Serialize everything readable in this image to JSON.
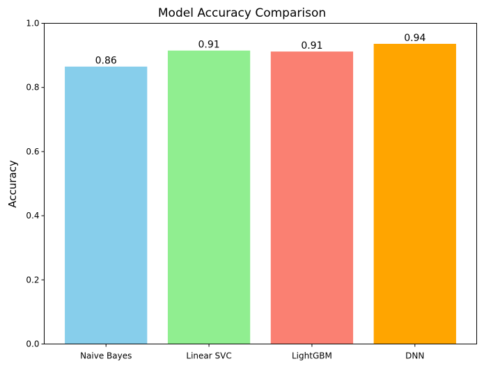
{
  "chart_data": {
    "type": "bar",
    "title": "Model Accuracy Comparison",
    "xlabel": "",
    "ylabel": "Accuracy",
    "categories": [
      "Naive Bayes",
      "Linear SVC",
      "LightGBM",
      "DNN"
    ],
    "values": [
      0.865,
      0.915,
      0.912,
      0.936
    ],
    "value_labels": [
      "0.86",
      "0.91",
      "0.91",
      "0.94"
    ],
    "colors": [
      "#87CEEB",
      "#90EE90",
      "#FA8072",
      "#FFA500"
    ],
    "ylim": [
      0,
      1.0
    ],
    "yticks": [
      0.0,
      0.2,
      0.4,
      0.6,
      0.8,
      1.0
    ],
    "ytick_labels": [
      "0.0",
      "0.2",
      "0.4",
      "0.6",
      "0.8",
      "1.0"
    ],
    "grid": false,
    "legend": "none"
  }
}
